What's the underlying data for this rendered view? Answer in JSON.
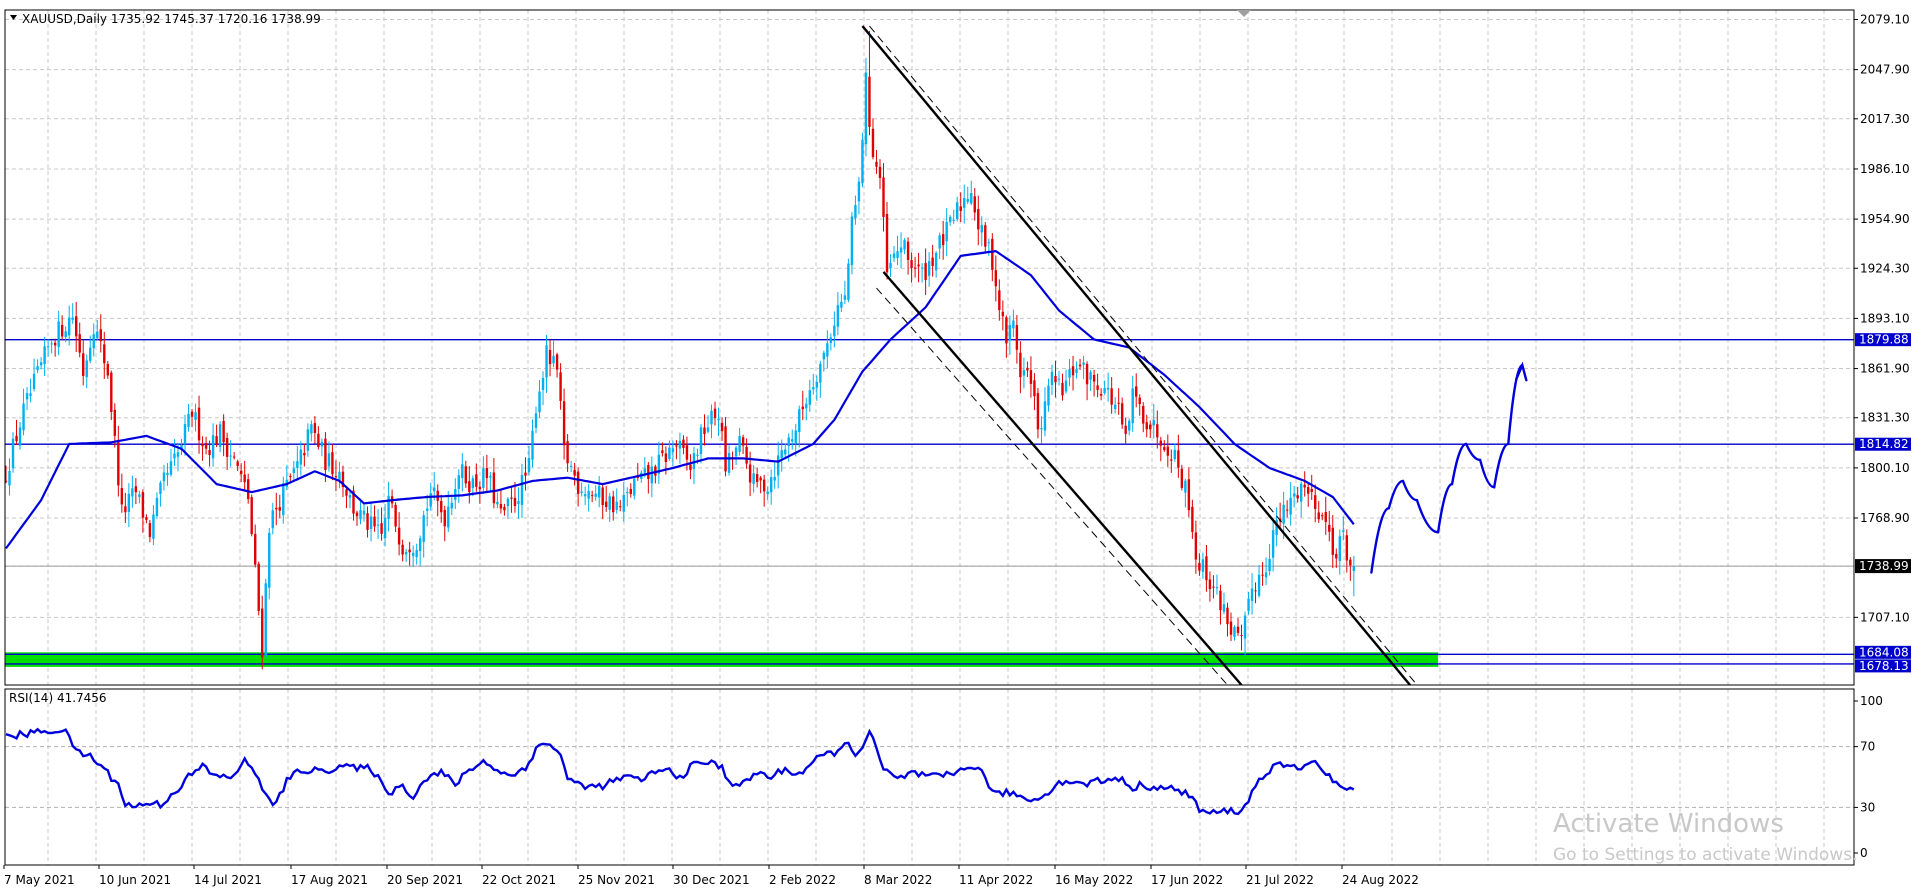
{
  "header": {
    "symbol_line": "XAUUSD,Daily  1735.92 1745.37 1720.16 1738.99",
    "indicator_line": "RSI(14) 41.7456"
  },
  "watermark": {
    "title": "Activate Windows",
    "subtitle": "Go to Settings to activate Windows."
  },
  "colors": {
    "bull": "#00b0f0",
    "bear": "#e00000",
    "ma": "#0000dd",
    "hline": "#0000cc",
    "support_zone": "#00e000",
    "grid": "#c8c8c8",
    "tag_bg": "#0000cc",
    "price_tag_bg": "#000000"
  },
  "chart_data": [
    {
      "type": "candlestick",
      "symbol": "XAUUSD",
      "timeframe": "Daily",
      "ohlc_last": {
        "open": 1735.92,
        "high": 1745.37,
        "low": 1720.16,
        "close": 1738.99
      },
      "y_ticks": [
        "2079.10",
        "2047.90",
        "2017.30",
        "1986.10",
        "1954.90",
        "1924.30",
        "1893.10",
        "1861.90",
        "1831.30",
        "1800.10",
        "1768.90",
        "1738.99",
        "1707.10"
      ],
      "x_ticks": [
        "7 May 2021",
        "10 Jun 2021",
        "14 Jul 2021",
        "17 Aug 2021",
        "20 Sep 2021",
        "22 Oct 2021",
        "25 Nov 2021",
        "30 Dec 2021",
        "2 Feb 2022",
        "8 Mar 2022",
        "11 Apr 2022",
        "16 May 2022",
        "17 Jun 2022",
        "21 Jul 2022",
        "24 Aug 2022"
      ],
      "ylim": [
        1665,
        2085
      ],
      "price_levels": [
        {
          "value": 1879.88,
          "label": "1879.88"
        },
        {
          "value": 1814.82,
          "label": "1814.82"
        },
        {
          "value": 1684.08,
          "label": "1684.08"
        },
        {
          "value": 1678.13,
          "label": "1678.13"
        }
      ],
      "current_price": {
        "value": 1738.99,
        "label": "1738.99"
      },
      "support_zone": [
        1678.13,
        1684.08
      ],
      "anchors": [
        [
          0,
          1790
        ],
        [
          6,
          1835
        ],
        [
          14,
          1880
        ],
        [
          20,
          1895
        ],
        [
          23,
          1860
        ],
        [
          26,
          1890
        ],
        [
          30,
          1860
        ],
        [
          34,
          1772
        ],
        [
          38,
          1785
        ],
        [
          42,
          1760
        ],
        [
          46,
          1792
        ],
        [
          50,
          1808
        ],
        [
          54,
          1835
        ],
        [
          58,
          1812
        ],
        [
          62,
          1822
        ],
        [
          66,
          1805
        ],
        [
          70,
          1782
        ],
        [
          74,
          1688
        ],
        [
          76,
          1765
        ],
        [
          80,
          1785
        ],
        [
          84,
          1800
        ],
        [
          88,
          1825
        ],
        [
          92,
          1805
        ],
        [
          96,
          1798
        ],
        [
          100,
          1775
        ],
        [
          104,
          1765
        ],
        [
          108,
          1757
        ],
        [
          110,
          1780
        ],
        [
          114,
          1752
        ],
        [
          118,
          1755
        ],
        [
          122,
          1785
        ],
        [
          126,
          1770
        ],
        [
          130,
          1798
        ],
        [
          134,
          1790
        ],
        [
          138,
          1795
        ],
        [
          142,
          1770
        ],
        [
          146,
          1780
        ],
        [
          150,
          1800
        ],
        [
          152,
          1840
        ],
        [
          155,
          1870
        ],
        [
          158,
          1860
        ],
        [
          160,
          1810
        ],
        [
          164,
          1790
        ],
        [
          168,
          1785
        ],
        [
          172,
          1780
        ],
        [
          176,
          1775
        ],
        [
          180,
          1790
        ],
        [
          184,
          1795
        ],
        [
          188,
          1805
        ],
        [
          192,
          1815
        ],
        [
          196,
          1800
        ],
        [
          200,
          1825
        ],
        [
          204,
          1835
        ],
        [
          206,
          1800
        ],
        [
          210,
          1815
        ],
        [
          214,
          1790
        ],
        [
          218,
          1790
        ],
        [
          222,
          1810
        ],
        [
          226,
          1825
        ],
        [
          230,
          1850
        ],
        [
          234,
          1870
        ],
        [
          238,
          1900
        ],
        [
          240,
          1905
        ],
        [
          242,
          1950
        ],
        [
          244,
          1975
        ],
        [
          246,
          2040
        ],
        [
          248,
          1995
        ],
        [
          250,
          1980
        ],
        [
          252,
          1920
        ],
        [
          254,
          1930
        ],
        [
          256,
          1940
        ],
        [
          258,
          1930
        ],
        [
          262,
          1920
        ],
        [
          266,
          1935
        ],
        [
          270,
          1950
        ],
        [
          272,
          1960
        ],
        [
          276,
          1975
        ],
        [
          278,
          1950
        ],
        [
          282,
          1930
        ],
        [
          284,
          1900
        ],
        [
          286,
          1880
        ],
        [
          288,
          1890
        ],
        [
          290,
          1860
        ],
        [
          292,
          1860
        ],
        [
          294,
          1840
        ],
        [
          296,
          1820
        ],
        [
          298,
          1855
        ],
        [
          302,
          1848
        ],
        [
          306,
          1865
        ],
        [
          310,
          1855
        ],
        [
          314,
          1850
        ],
        [
          318,
          1835
        ],
        [
          320,
          1815
        ],
        [
          322,
          1845
        ],
        [
          326,
          1830
        ],
        [
          330,
          1820
        ],
        [
          334,
          1808
        ],
        [
          338,
          1780
        ],
        [
          340,
          1745
        ],
        [
          344,
          1730
        ],
        [
          348,
          1712
        ],
        [
          350,
          1700
        ],
        [
          353,
          1690
        ],
        [
          356,
          1725
        ],
        [
          360,
          1740
        ],
        [
          362,
          1760
        ],
        [
          366,
          1775
        ],
        [
          370,
          1790
        ],
        [
          374,
          1780
        ],
        [
          376,
          1770
        ],
        [
          378,
          1760
        ],
        [
          380,
          1745
        ],
        [
          382,
          1758
        ],
        [
          384,
          1739
        ]
      ],
      "ma_points": [
        [
          0,
          1750
        ],
        [
          10,
          1780
        ],
        [
          18,
          1815
        ],
        [
          30,
          1816
        ],
        [
          40,
          1820
        ],
        [
          50,
          1812
        ],
        [
          60,
          1790
        ],
        [
          70,
          1785
        ],
        [
          80,
          1790
        ],
        [
          88,
          1798
        ],
        [
          95,
          1792
        ],
        [
          102,
          1778
        ],
        [
          110,
          1780
        ],
        [
          120,
          1782
        ],
        [
          130,
          1783
        ],
        [
          140,
          1786
        ],
        [
          150,
          1792
        ],
        [
          160,
          1794
        ],
        [
          170,
          1790
        ],
        [
          180,
          1795
        ],
        [
          190,
          1800
        ],
        [
          200,
          1806
        ],
        [
          210,
          1806
        ],
        [
          220,
          1804
        ],
        [
          230,
          1815
        ],
        [
          236,
          1830
        ],
        [
          244,
          1860
        ],
        [
          252,
          1880
        ],
        [
          262,
          1900
        ],
        [
          272,
          1932
        ],
        [
          282,
          1935
        ],
        [
          292,
          1920
        ],
        [
          300,
          1898
        ],
        [
          310,
          1880
        ],
        [
          320,
          1875
        ],
        [
          330,
          1858
        ],
        [
          340,
          1838
        ],
        [
          350,
          1815
        ],
        [
          360,
          1800
        ],
        [
          370,
          1792
        ],
        [
          378,
          1782
        ],
        [
          384,
          1765
        ]
      ],
      "trendlines": [
        {
          "from": [
            244,
            2075
          ],
          "to": [
            400,
            1665
          ],
          "style": "solid"
        },
        {
          "from": [
            246,
            2075
          ],
          "to": [
            402,
            1665
          ],
          "style": "dashed"
        },
        {
          "from": [
            250,
            1922
          ],
          "to": [
            352,
            1665
          ],
          "style": "solid"
        },
        {
          "from": [
            248,
            1912
          ],
          "to": [
            348,
            1665
          ],
          "style": "dashed"
        }
      ],
      "projection": [
        [
          389,
          1735
        ],
        [
          394,
          1775
        ],
        [
          398,
          1792
        ],
        [
          402,
          1780
        ],
        [
          408,
          1760
        ],
        [
          412,
          1790
        ],
        [
          416,
          1815
        ],
        [
          420,
          1805
        ],
        [
          424,
          1788
        ],
        [
          428,
          1815
        ],
        [
          432,
          1864
        ]
      ]
    },
    {
      "type": "line",
      "indicator": "RSI(14)",
      "value": 41.7456,
      "ylim": [
        0,
        100
      ],
      "y_ticks": [
        "100",
        "70",
        "30",
        "0"
      ],
      "anchors": [
        [
          0,
          76
        ],
        [
          5,
          78
        ],
        [
          10,
          80
        ],
        [
          14,
          81
        ],
        [
          18,
          78
        ],
        [
          20,
          66
        ],
        [
          24,
          64
        ],
        [
          28,
          55
        ],
        [
          32,
          45
        ],
        [
          34,
          33
        ],
        [
          36,
          30
        ],
        [
          40,
          33
        ],
        [
          44,
          32
        ],
        [
          48,
          40
        ],
        [
          52,
          50
        ],
        [
          56,
          57
        ],
        [
          60,
          50
        ],
        [
          64,
          50
        ],
        [
          68,
          60
        ],
        [
          72,
          50
        ],
        [
          74,
          38
        ],
        [
          76,
          30
        ],
        [
          80,
          47
        ],
        [
          84,
          55
        ],
        [
          88,
          54
        ],
        [
          92,
          55
        ],
        [
          96,
          58
        ],
        [
          100,
          55
        ],
        [
          104,
          56
        ],
        [
          108,
          42
        ],
        [
          110,
          40
        ],
        [
          112,
          45
        ],
        [
          116,
          38
        ],
        [
          120,
          50
        ],
        [
          124,
          53
        ],
        [
          128,
          45
        ],
        [
          132,
          55
        ],
        [
          136,
          60
        ],
        [
          140,
          55
        ],
        [
          144,
          50
        ],
        [
          148,
          57
        ],
        [
          152,
          71
        ],
        [
          155,
          72
        ],
        [
          158,
          65
        ],
        [
          160,
          48
        ],
        [
          164,
          45
        ],
        [
          168,
          43
        ],
        [
          172,
          46
        ],
        [
          176,
          50
        ],
        [
          180,
          48
        ],
        [
          184,
          52
        ],
        [
          188,
          55
        ],
        [
          192,
          50
        ],
        [
          196,
          58
        ],
        [
          200,
          60
        ],
        [
          204,
          56
        ],
        [
          206,
          47
        ],
        [
          210,
          45
        ],
        [
          214,
          53
        ],
        [
          218,
          50
        ],
        [
          222,
          55
        ],
        [
          226,
          52
        ],
        [
          230,
          60
        ],
        [
          234,
          65
        ],
        [
          238,
          68
        ],
        [
          240,
          72
        ],
        [
          242,
          66
        ],
        [
          244,
          70
        ],
        [
          246,
          79
        ],
        [
          248,
          68
        ],
        [
          250,
          55
        ],
        [
          254,
          48
        ],
        [
          258,
          53
        ],
        [
          262,
          50
        ],
        [
          266,
          50
        ],
        [
          270,
          52
        ],
        [
          274,
          58
        ],
        [
          278,
          53
        ],
        [
          282,
          38
        ],
        [
          286,
          40
        ],
        [
          290,
          36
        ],
        [
          294,
          35
        ],
        [
          298,
          43
        ],
        [
          302,
          48
        ],
        [
          306,
          45
        ],
        [
          310,
          47
        ],
        [
          314,
          48
        ],
        [
          318,
          50
        ],
        [
          320,
          42
        ],
        [
          324,
          45
        ],
        [
          328,
          43
        ],
        [
          332,
          42
        ],
        [
          336,
          40
        ],
        [
          338,
          36
        ],
        [
          340,
          28
        ],
        [
          344,
          26
        ],
        [
          348,
          28
        ],
        [
          350,
          27
        ],
        [
          353,
          30
        ],
        [
          356,
          45
        ],
        [
          360,
          55
        ],
        [
          364,
          58
        ],
        [
          368,
          55
        ],
        [
          372,
          62
        ],
        [
          376,
          52
        ],
        [
          380,
          43
        ],
        [
          384,
          42
        ]
      ]
    }
  ]
}
